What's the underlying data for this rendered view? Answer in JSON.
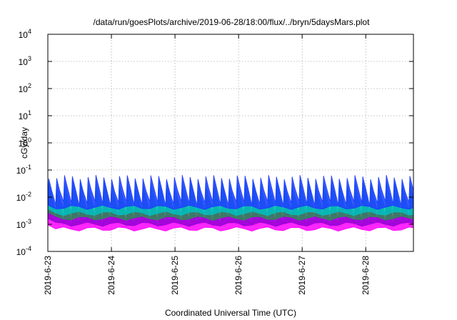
{
  "chart_data": {
    "type": "area",
    "title": "/data/run/goesPlots/archive/2019-06-28/18:00/flux/../bryn/5daysMars.plot",
    "xlabel": "Coordinated Universal Time (UTC)",
    "ylabel": "cGy/day",
    "y_scale": "log",
    "ylim": [
      0.0001,
      10000
    ],
    "y_ticks": [
      {
        "value": 0.0001,
        "base": "10",
        "exp": "-4"
      },
      {
        "value": 0.001,
        "base": "10",
        "exp": "-3"
      },
      {
        "value": 0.01,
        "base": "10",
        "exp": "-2"
      },
      {
        "value": 0.1,
        "base": "10",
        "exp": "-1"
      },
      {
        "value": 1,
        "base": "10",
        "exp": "0"
      },
      {
        "value": 10,
        "base": "10",
        "exp": "1"
      },
      {
        "value": 100,
        "base": "10",
        "exp": "2"
      },
      {
        "value": 1000,
        "base": "10",
        "exp": "3"
      },
      {
        "value": 10000,
        "base": "10",
        "exp": "4"
      }
    ],
    "xlim": [
      "2019-06-23",
      "2019-06-28T18:00"
    ],
    "x_ticks": [
      "2019-6-23",
      "2019-6-24",
      "2019-6-25",
      "2019-6-26",
      "2019-6-27",
      "2019-6-28"
    ],
    "grid": true,
    "oscillation_periods_per_day": 8.1,
    "series": [
      {
        "color": "#ff00ff",
        "peak": 0.02,
        "trough": 0.0008
      },
      {
        "color": "#9400d3",
        "peak": 0.028,
        "trough": 0.0012
      },
      {
        "color": "#2e8b57",
        "peak": 0.035,
        "trough": 0.002
      },
      {
        "color": "#00bfbf",
        "peak": 0.045,
        "trough": 0.003
      },
      {
        "color": "#1e3cff",
        "peak": 0.065,
        "trough": 0.005
      }
    ]
  }
}
